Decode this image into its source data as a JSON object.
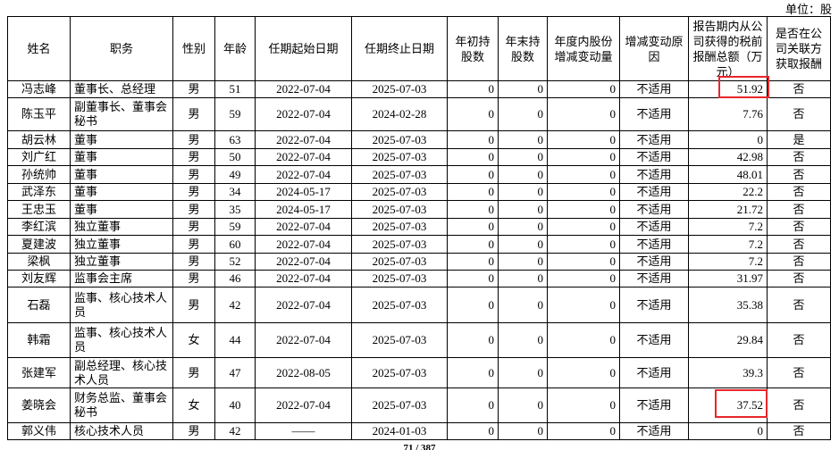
{
  "unit": "单位：股",
  "table": {
    "header": [
      "姓名",
      "职务",
      "性别",
      "年龄",
      "任期起始日期",
      "任期终止日期",
      "年初持股数",
      "年末持股数",
      "年度内股份增减变动量",
      "增减变动原因",
      "报告期内从公司获得的税前报酬总额（万元）",
      "是否在公司关联方获取报酬"
    ],
    "rows": [
      [
        "冯志峰",
        "董事长、总经理",
        "男",
        "51",
        "2022-07-04",
        "2025-07-03",
        "0",
        "0",
        "0",
        "不适用",
        "51.92",
        "否"
      ],
      [
        "陈玉平",
        "副董事长、董事会秘书",
        "男",
        "59",
        "2022-07-04",
        "2024-02-28",
        "0",
        "0",
        "0",
        "不适用",
        "7.76",
        "否"
      ],
      [
        "胡云林",
        "董事",
        "男",
        "63",
        "2022-07-04",
        "2025-07-03",
        "0",
        "0",
        "0",
        "不适用",
        "0",
        "是"
      ],
      [
        "刘广红",
        "董事",
        "男",
        "50",
        "2022-07-04",
        "2025-07-03",
        "0",
        "0",
        "0",
        "不适用",
        "42.98",
        "否"
      ],
      [
        "孙统帅",
        "董事",
        "男",
        "49",
        "2022-07-04",
        "2025-07-03",
        "0",
        "0",
        "0",
        "不适用",
        "48.01",
        "否"
      ],
      [
        "武泽东",
        "董事",
        "男",
        "34",
        "2024-05-17",
        "2025-07-03",
        "0",
        "0",
        "0",
        "不适用",
        "22.2",
        "否"
      ],
      [
        "王忠玉",
        "董事",
        "男",
        "35",
        "2024-05-17",
        "2025-07-03",
        "0",
        "0",
        "0",
        "不适用",
        "21.72",
        "否"
      ],
      [
        "李红滨",
        "独立董事",
        "男",
        "59",
        "2022-07-04",
        "2025-07-03",
        "0",
        "0",
        "0",
        "不适用",
        "7.2",
        "否"
      ],
      [
        "夏建波",
        "独立董事",
        "男",
        "60",
        "2022-07-04",
        "2025-07-03",
        "0",
        "0",
        "0",
        "不适用",
        "7.2",
        "否"
      ],
      [
        "梁枫",
        "独立董事",
        "男",
        "52",
        "2022-07-04",
        "2025-07-03",
        "0",
        "0",
        "0",
        "不适用",
        "7.2",
        "否"
      ],
      [
        "刘友辉",
        "监事会主席",
        "男",
        "46",
        "2022-07-04",
        "2025-07-03",
        "0",
        "0",
        "0",
        "不适用",
        "31.97",
        "否"
      ],
      [
        "石磊",
        "监事、核心技术人员",
        "男",
        "42",
        "2022-07-04",
        "2025-07-03",
        "0",
        "0",
        "0",
        "不适用",
        "35.38",
        "否"
      ],
      [
        "韩霜",
        "监事、核心技术人员",
        "女",
        "44",
        "2022-07-04",
        "2025-07-03",
        "0",
        "0",
        "0",
        "不适用",
        "29.84",
        "否"
      ],
      [
        "张建军",
        "副总经理、核心技术人员",
        "男",
        "47",
        "2022-08-05",
        "2025-07-03",
        "0",
        "0",
        "0",
        "不适用",
        "39.3",
        "否"
      ],
      [
        "姜晓会",
        "财务总监、董事会秘书",
        "女",
        "40",
        "2022-07-04",
        "2025-07-03",
        "0",
        "0",
        "0",
        "不适用",
        "37.52",
        "否"
      ],
      [
        "郭义伟",
        "核心技术人员",
        "男",
        "42",
        "——",
        "2024-01-03",
        "0",
        "0",
        "0",
        "不适用",
        "0",
        "否"
      ]
    ]
  },
  "footer": "71 / 387"
}
